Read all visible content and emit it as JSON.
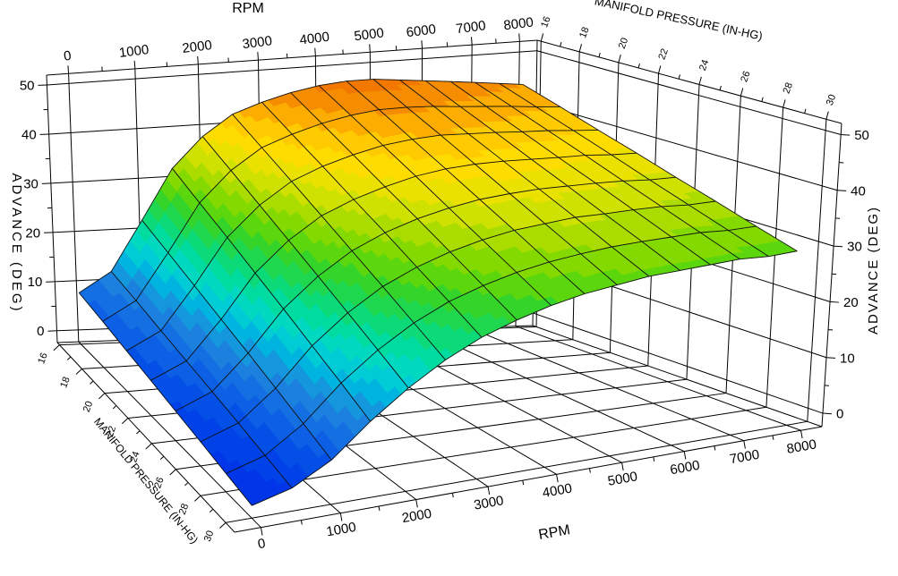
{
  "page": {
    "background": "#FFFFFF",
    "line_color": "#000000"
  },
  "labels": {
    "top_x": "RPM",
    "top_y": "MANIFOLD PRESSURE (IN-HG)",
    "left_z": "ADVANCE (DEG)",
    "right_z": "ADVANCE (DEG)",
    "bottom_x": "RPM",
    "bottom_y": "MANIFOLD PRESSURE (IN-HG)"
  },
  "chart_data": {
    "type": "surface",
    "title": "",
    "x_axis": {
      "label": "RPM",
      "min": -320,
      "max": 8380,
      "major_ticks": [
        0,
        1000,
        2000,
        3000,
        4000,
        5000,
        6000,
        7000,
        8000
      ],
      "minor_ticks": [
        500,
        1500,
        2500,
        3500,
        4500,
        5500,
        6500,
        7500
      ]
    },
    "y_axis": {
      "label": "MANIFOLD PRESSURE (IN-HG)",
      "min": 15.8,
      "max": 30.7,
      "major_ticks": [
        16,
        18,
        20,
        22,
        24,
        26,
        28,
        30
      ],
      "minor_ticks": [
        17,
        19,
        21,
        23,
        25,
        27,
        29
      ]
    },
    "z_axis": {
      "label": "ADVANCE (DEG)",
      "min": -2.4,
      "max": 52,
      "major_ticks": [
        0,
        10,
        20,
        30,
        40,
        50
      ],
      "minor_ticks": [
        5,
        15,
        25,
        35,
        45
      ]
    },
    "grid": "walls and floor at major ticks",
    "surface": {
      "rpm": [
        0,
        500,
        1000,
        1500,
        2000,
        2500,
        3000,
        3500,
        4000,
        4500,
        5000,
        5500,
        6000,
        6500,
        7000,
        7500,
        8000
      ],
      "manifold_pressure": [
        16,
        18,
        20,
        22,
        24,
        26,
        28,
        30
      ],
      "advance": [
        [
          8,
          12,
          22,
          32,
          38,
          42,
          44,
          45.5,
          46.5,
          47,
          47,
          46.5,
          46,
          45.5,
          45,
          44.5,
          44
        ],
        [
          6.9,
          10.6,
          19.7,
          29.1,
          35,
          39,
          41.1,
          42.7,
          43.8,
          44.4,
          44.4,
          44.1,
          43.6,
          43.2,
          42.8,
          42.3,
          41.9
        ],
        [
          5.7,
          9.1,
          17.4,
          26.3,
          32,
          36,
          38.3,
          39.9,
          41.1,
          41.7,
          41.9,
          41.6,
          41.3,
          40.9,
          40.6,
          40.1,
          39.7
        ],
        [
          4.6,
          7.7,
          15.1,
          23.4,
          29,
          33,
          35.4,
          37.1,
          38.4,
          39.1,
          39.3,
          39.2,
          38.9,
          38.6,
          38.4,
          37.9,
          37.6
        ],
        [
          3.4,
          6.3,
          12.9,
          20.6,
          26,
          30,
          32.6,
          34.4,
          35.6,
          36.4,
          36.7,
          36.8,
          36.6,
          36.4,
          36.1,
          35.6,
          35.4
        ],
        [
          2.3,
          4.9,
          10.6,
          17.7,
          23,
          27,
          29.7,
          31.6,
          32.9,
          33.8,
          34.1,
          34.4,
          34.2,
          34.1,
          33.9,
          33.4,
          33.3
        ],
        [
          1.1,
          3.4,
          8.3,
          14.9,
          20,
          24,
          26.9,
          28.8,
          30.2,
          31.1,
          31.6,
          31.9,
          31.9,
          31.8,
          31.7,
          31.2,
          31.1
        ],
        [
          0,
          2,
          6,
          12,
          17,
          21,
          24,
          26,
          27.5,
          28.5,
          29,
          29.5,
          29.5,
          29.5,
          29.5,
          29,
          29
        ]
      ]
    },
    "palette": {
      "band_width": 2,
      "stops": [
        [
          0,
          "#0030E8"
        ],
        [
          4,
          "#0048E8"
        ],
        [
          8,
          "#1168E4"
        ],
        [
          12,
          "#1E88DC"
        ],
        [
          15,
          "#00B4E0"
        ],
        [
          18,
          "#00D8D0"
        ],
        [
          21,
          "#00DCA0"
        ],
        [
          24,
          "#12D862"
        ],
        [
          27,
          "#35D42A"
        ],
        [
          30,
          "#70D800"
        ],
        [
          33,
          "#AADC00"
        ],
        [
          36,
          "#E0E400"
        ],
        [
          39,
          "#FFDC00"
        ],
        [
          42,
          "#FFC200"
        ],
        [
          44,
          "#F89800"
        ],
        [
          47,
          "#F27800"
        ]
      ]
    },
    "mesh_color": "#101010",
    "axis_color": "#000000"
  }
}
